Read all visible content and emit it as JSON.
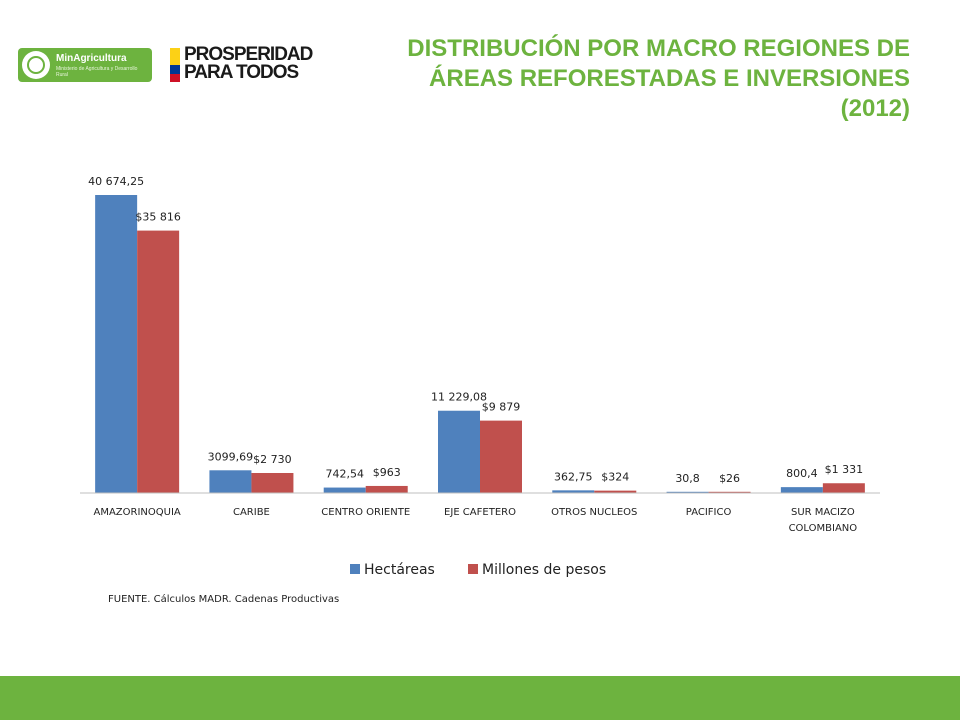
{
  "header": {
    "title_lines": [
      "DISTRIBUCIÓN POR MACRO REGIONES DE",
      "ÁREAS REFORESTADAS E INVERSIONES",
      "(2012)"
    ],
    "logo_ministry": {
      "name": "MinAgricultura",
      "subtitle": "Ministerio de Agricultura y Desarrollo Rural"
    },
    "logo_slogan": [
      "PROSPERIDAD",
      "PARA TODOS"
    ]
  },
  "colors": {
    "accent": "#6db33f",
    "series_1": "#4f81bd",
    "series_2": "#c0504d",
    "flag_yellow": "#fcd116",
    "flag_blue": "#003893",
    "flag_red": "#ce1126"
  },
  "chart_data": {
    "type": "bar",
    "categories": [
      [
        "AMAZORINOQUIA"
      ],
      [
        "CARIBE"
      ],
      [
        "CENTRO ORIENTE"
      ],
      [
        "EJE CAFETERO"
      ],
      [
        "OTROS NUCLEOS"
      ],
      [
        "PACIFICO"
      ],
      [
        "SUR MACIZO",
        "COLOMBIANO"
      ]
    ],
    "series": [
      {
        "name": "Hectáreas",
        "values": [
          40674.25,
          3099.69,
          742.54,
          11229.08,
          362.75,
          30.8,
          800.4
        ],
        "labels": [
          "40 674,25",
          "3099,69",
          "742,54",
          "11 229,08",
          "362,75",
          "30,8",
          "800,4"
        ]
      },
      {
        "name": "Millones de pesos",
        "values": [
          35816,
          2730,
          963,
          9879,
          324,
          26,
          1331
        ],
        "labels": [
          "$35 816",
          "$2 730",
          "$963",
          "$9 879",
          "$324",
          "$26",
          "$1 331"
        ]
      }
    ],
    "ylim": [
      0,
      40674.25
    ],
    "grid": false,
    "legend": "bottom"
  },
  "footer": {
    "source": "FUENTE. Cálculos MADR. Cadenas Productivas"
  }
}
